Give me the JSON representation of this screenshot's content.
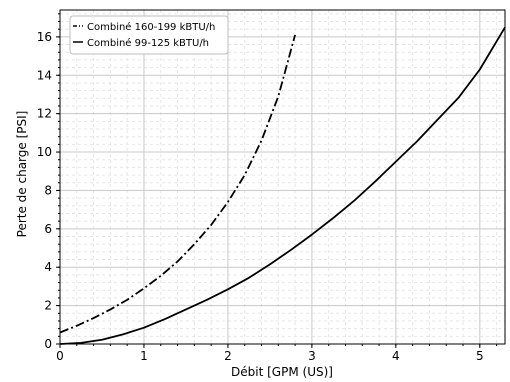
{
  "chart_data": {
    "type": "line",
    "xlabel": "Débit [GPM (US)]",
    "ylabel": "Perte de charge [PSI]",
    "xlim": [
      0,
      5.3
    ],
    "ylim": [
      0,
      17.4
    ],
    "x_ticks": [
      "0",
      "1",
      "2",
      "3",
      "4",
      "5"
    ],
    "y_ticks": [
      "0",
      "2",
      "4",
      "6",
      "8",
      "10",
      "12",
      "14",
      "16"
    ],
    "grid": true,
    "minor_grid": true,
    "legend_position": "top-left",
    "series": [
      {
        "name": "Combiné 160-199 kBTU/h",
        "line_style": "dash-dot",
        "color": "#000000",
        "x": [
          0,
          0.2,
          0.4,
          0.6,
          0.8,
          1.0,
          1.2,
          1.4,
          1.6,
          1.8,
          2.0,
          2.2,
          2.4,
          2.6,
          2.8
        ],
        "y": [
          0.6,
          0.95,
          1.35,
          1.8,
          2.3,
          2.9,
          3.55,
          4.3,
          5.2,
          6.2,
          7.4,
          8.8,
          10.6,
          12.9,
          16.1
        ]
      },
      {
        "name": "Combiné 99-125 kBTU/h",
        "line_style": "solid",
        "color": "#000000",
        "x": [
          0,
          0.25,
          0.5,
          0.75,
          1.0,
          1.25,
          1.5,
          1.75,
          2.0,
          2.25,
          2.5,
          2.75,
          3.0,
          3.25,
          3.5,
          3.75,
          4.0,
          4.25,
          4.5,
          4.75,
          5.0,
          5.3
        ],
        "y": [
          0,
          0.06,
          0.22,
          0.5,
          0.85,
          1.3,
          1.8,
          2.3,
          2.85,
          3.45,
          4.15,
          4.9,
          5.7,
          6.55,
          7.45,
          8.45,
          9.5,
          10.55,
          11.7,
          12.85,
          14.3,
          16.5
        ]
      }
    ]
  }
}
